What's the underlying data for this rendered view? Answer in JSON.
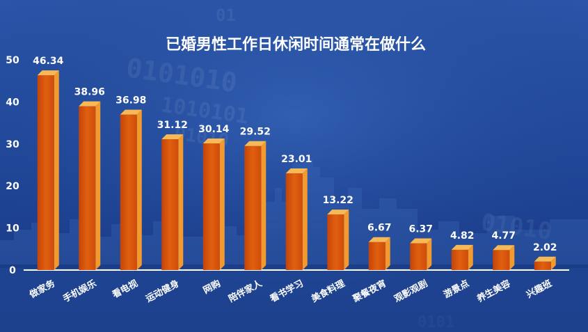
{
  "chart_data": {
    "type": "bar",
    "title": "已婚男性工作日休闲时间通常在做什么",
    "xlabel": "",
    "ylabel": "",
    "ylim": [
      0,
      50
    ],
    "yticks": [
      0,
      10,
      20,
      30,
      40,
      50
    ],
    "categories": [
      "做家务",
      "手机娱乐",
      "看电视",
      "运动健身",
      "网购",
      "陪伴家人",
      "看书学习",
      "美食料理",
      "聚餐夜宵",
      "观影观剧",
      "游景点",
      "养生美容",
      "兴趣班"
    ],
    "values": [
      46.34,
      38.96,
      36.98,
      31.12,
      30.14,
      29.52,
      23.01,
      13.22,
      6.67,
      6.37,
      4.82,
      4.77,
      2.02
    ],
    "value_labels": [
      "46.34",
      "38.96",
      "36.98",
      "31.12",
      "30.14",
      "29.52",
      "23.01",
      "13.22",
      "6.67",
      "6.37",
      "4.82",
      "4.77",
      "2.02"
    ],
    "grid": false,
    "legend": "none",
    "colors": {
      "bar_front": "#d9540c",
      "bar_side": "#f29a2e",
      "bar_top": "#f7b955",
      "background": "#1d3f86",
      "axis": "#ffffff",
      "text": "#ffffff"
    }
  }
}
